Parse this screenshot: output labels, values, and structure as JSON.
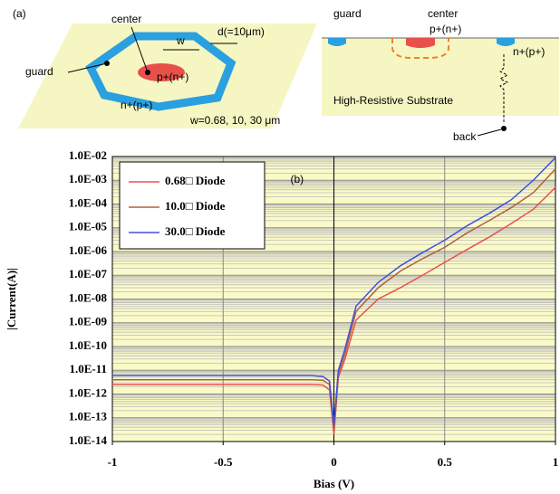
{
  "diagram": {
    "label": "(a)",
    "left": {
      "center": "center",
      "w": "w",
      "d": "d(=10μm)",
      "guard": "guard",
      "p": "p+(n+)",
      "n": "n+(p+)",
      "widths": "w=0.68, 10, 30 μm"
    },
    "right": {
      "guard": "guard",
      "center": "center",
      "p": "p+(n+)",
      "n": "n+(p+)",
      "substrate": "High-Resistive Substrate",
      "back": "back"
    }
  },
  "chart_data": {
    "type": "line",
    "annotation": "(b)",
    "x_label": "Bias (V)",
    "y_label": "|Current(A)|",
    "x": [
      -1,
      -0.5,
      -0.1,
      -0.05,
      -0.02,
      0,
      0.02,
      0.05,
      0.1,
      0.2,
      0.3,
      0.4,
      0.5,
      0.6,
      0.7,
      0.8,
      0.9,
      1
    ],
    "series": [
      {
        "name": "0.68□ Diode",
        "color": "#e8504a",
        "values": [
          2.5e-12,
          2.5e-12,
          2.5e-12,
          2.4e-12,
          1.5e-12,
          2e-14,
          5e-12,
          3e-11,
          1.3e-09,
          1e-08,
          3e-08,
          1e-07,
          3.5e-07,
          1.2e-06,
          4e-06,
          1.5e-05,
          6e-05,
          0.0005
        ]
      },
      {
        "name": "10.0□ Diode",
        "color": "#b0603c",
        "values": [
          4e-12,
          4e-12,
          4e-12,
          3.8e-12,
          2.5e-12,
          3e-14,
          7e-12,
          5e-11,
          3e-09,
          3e-08,
          1.5e-07,
          5e-07,
          1.5e-06,
          6e-06,
          2e-05,
          7e-05,
          0.0003,
          0.003
        ]
      },
      {
        "name": "30.0□ Diode",
        "color": "#4050e0",
        "values": [
          6e-12,
          6e-12,
          6e-12,
          5.5e-12,
          3.5e-12,
          5e-14,
          1e-11,
          8e-11,
          5e-09,
          5e-08,
          2.5e-07,
          9e-07,
          3e-06,
          1.2e-05,
          4e-05,
          0.00015,
          0.001,
          0.009
        ]
      }
    ],
    "xlim": [
      -1,
      1
    ],
    "xticks": [
      -1,
      -0.5,
      0,
      0.5,
      1
    ],
    "ylim": [
      1e-14,
      0.01
    ],
    "yscale": "log",
    "yticks": [
      {
        "value": 1e-14,
        "label": "1.0E-14"
      },
      {
        "value": 1e-13,
        "label": "1.0E-13"
      },
      {
        "value": 1e-12,
        "label": "1.0E-12"
      },
      {
        "value": 1e-11,
        "label": "1.0E-11"
      },
      {
        "value": 1e-10,
        "label": "1.0E-10"
      },
      {
        "value": 1e-09,
        "label": "1.0E-09"
      },
      {
        "value": 1e-08,
        "label": "1.0E-08"
      },
      {
        "value": 1e-07,
        "label": "1.0E-07"
      },
      {
        "value": 1e-06,
        "label": "1.0E-06"
      },
      {
        "value": 1e-05,
        "label": "1.0E-05"
      },
      {
        "value": 0.0001,
        "label": "1.0E-04"
      },
      {
        "value": 0.001,
        "label": "1.0E-03"
      },
      {
        "value": 0.01,
        "label": "1.0E-02"
      }
    ],
    "grid": true,
    "minor_grid": true,
    "background": "#fafac8",
    "legend": "upper left"
  }
}
